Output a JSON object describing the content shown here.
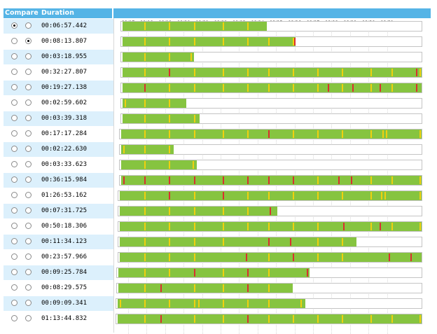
{
  "header": {
    "compare_label": "Compare",
    "duration_label": "Duration"
  },
  "colors": {
    "header_bg": "#55b4e6",
    "alt_row_bg": "#dcf0fc",
    "bar_green": "#86c440",
    "marker_yellow": "#f0d010",
    "marker_red": "#d83030"
  },
  "time_axis": {
    "ticks": [
      "08:17",
      "08:18",
      "08:19",
      "08:20",
      "08:21",
      "08:22",
      "08:23",
      "08:24",
      "08:25",
      "08:26",
      "08:27",
      "08:28",
      "08:29",
      "08:30",
      "08:31"
    ]
  },
  "rows": [
    {
      "duration": "00:06:57.442",
      "radio_a": true,
      "radio_b": false,
      "bar": [
        0.022,
        0.49
      ],
      "markers": [
        [
          "y",
          0.087
        ],
        [
          "y",
          0.168
        ],
        [
          "y",
          0.25
        ],
        [
          "y",
          0.344
        ],
        [
          "y",
          0.425
        ]
      ]
    },
    {
      "duration": "00:08:13.807",
      "radio_a": false,
      "radio_b": true,
      "bar": [
        0.022,
        0.585
      ],
      "markers": [
        [
          "y",
          0.087
        ],
        [
          "y",
          0.168
        ],
        [
          "y",
          0.25
        ],
        [
          "y",
          0.344
        ],
        [
          "y",
          0.425
        ],
        [
          "y",
          0.495
        ],
        [
          "y",
          0.575
        ],
        [
          "r",
          0.58
        ]
      ]
    },
    {
      "duration": "00:03:18.955",
      "radio_a": false,
      "radio_b": false,
      "bar": [
        0.022,
        0.25
      ],
      "markers": [
        [
          "y",
          0.087
        ],
        [
          "y",
          0.168
        ],
        [
          "y",
          0.24
        ]
      ]
    },
    {
      "duration": "00:32:27.807",
      "radio_a": false,
      "radio_b": false,
      "bar": [
        0.022,
        1
      ],
      "markers": [
        [
          "y",
          0.087
        ],
        [
          "r",
          0.168
        ],
        [
          "y",
          0.25
        ],
        [
          "y",
          0.344
        ],
        [
          "y",
          0.425
        ],
        [
          "y",
          0.495
        ],
        [
          "y",
          0.575
        ],
        [
          "y",
          0.655
        ],
        [
          "y",
          0.735
        ],
        [
          "y",
          0.83
        ],
        [
          "y",
          0.9
        ],
        [
          "r",
          0.98
        ],
        [
          "y",
          0.99
        ]
      ]
    },
    {
      "duration": "00:19:27.138",
      "radio_a": false,
      "radio_b": false,
      "bar": [
        0.022,
        1
      ],
      "markers": [
        [
          "y",
          0.087
        ],
        [
          "r",
          0.087
        ],
        [
          "y",
          0.168
        ],
        [
          "y",
          0.25
        ],
        [
          "y",
          0.344
        ],
        [
          "y",
          0.425
        ],
        [
          "y",
          0.495
        ],
        [
          "y",
          0.575
        ],
        [
          "y",
          0.655
        ],
        [
          "r",
          0.69
        ],
        [
          "y",
          0.735
        ],
        [
          "r",
          0.77
        ],
        [
          "y",
          0.83
        ],
        [
          "r",
          0.86
        ],
        [
          "y",
          0.9
        ],
        [
          "r",
          0.98
        ]
      ]
    },
    {
      "duration": "00:02:59.602",
      "radio_a": false,
      "radio_b": false,
      "bar": [
        0.022,
        0.225
      ],
      "markers": [
        [
          "y",
          0.022
        ],
        [
          "y",
          0.087
        ],
        [
          "y",
          0.168
        ]
      ]
    },
    {
      "duration": "00:03:39.318",
      "radio_a": false,
      "radio_b": false,
      "bar": [
        0.022,
        0.27
      ],
      "markers": [
        [
          "y",
          0.087
        ],
        [
          "y",
          0.168
        ],
        [
          "y",
          0.25
        ]
      ]
    },
    {
      "duration": "00:17:17.284",
      "radio_a": false,
      "radio_b": false,
      "bar": [
        0.018,
        1
      ],
      "markers": [
        [
          "y",
          0.087
        ],
        [
          "y",
          0.168
        ],
        [
          "y",
          0.25
        ],
        [
          "y",
          0.344
        ],
        [
          "y",
          0.425
        ],
        [
          "r",
          0.495
        ],
        [
          "y",
          0.575
        ],
        [
          "y",
          0.655
        ],
        [
          "y",
          0.735
        ],
        [
          "y",
          0.83
        ],
        [
          "y",
          0.87
        ],
        [
          "y",
          0.88
        ],
        [
          "y",
          0.99
        ]
      ]
    },
    {
      "duration": "00:02:22.630",
      "radio_a": false,
      "radio_b": false,
      "bar": [
        0.018,
        0.185
      ],
      "markers": [
        [
          "y",
          0.018
        ],
        [
          "y",
          0.087
        ],
        [
          "y",
          0.168
        ]
      ]
    },
    {
      "duration": "00:03:33.623",
      "radio_a": false,
      "radio_b": false,
      "bar": [
        0.018,
        0.26
      ],
      "markers": [
        [
          "y",
          0.087
        ],
        [
          "y",
          0.168
        ],
        [
          "y",
          0.245
        ]
      ]
    },
    {
      "duration": "00:36:15.984",
      "radio_a": false,
      "radio_b": false,
      "bar": [
        0.018,
        1
      ],
      "markers": [
        [
          "r",
          0.018
        ],
        [
          "r",
          0.087
        ],
        [
          "r",
          0.168
        ],
        [
          "r",
          0.25
        ],
        [
          "r",
          0.344
        ],
        [
          "r",
          0.425
        ],
        [
          "r",
          0.495
        ],
        [
          "r",
          0.575
        ],
        [
          "y",
          0.655
        ],
        [
          "r",
          0.725
        ],
        [
          "r",
          0.765
        ],
        [
          "y",
          0.83
        ],
        [
          "y",
          0.9
        ],
        [
          "y",
          0.99
        ]
      ]
    },
    {
      "duration": "01:26:53.162",
      "radio_a": false,
      "radio_b": false,
      "bar": [
        0.014,
        1
      ],
      "markers": [
        [
          "y",
          0.087
        ],
        [
          "r",
          0.168
        ],
        [
          "y",
          0.25
        ],
        [
          "r",
          0.344
        ],
        [
          "y",
          0.425
        ],
        [
          "y",
          0.495
        ],
        [
          "y",
          0.575
        ],
        [
          "y",
          0.655
        ],
        [
          "y",
          0.735
        ],
        [
          "y",
          0.83
        ],
        [
          "y",
          0.865
        ],
        [
          "y",
          0.875
        ],
        [
          "y",
          0.99
        ]
      ]
    },
    {
      "duration": "00:07:31.725",
      "radio_a": false,
      "radio_b": false,
      "bar": [
        0.014,
        0.525
      ],
      "markers": [
        [
          "y",
          0.087
        ],
        [
          "y",
          0.168
        ],
        [
          "y",
          0.25
        ],
        [
          "y",
          0.344
        ],
        [
          "y",
          0.425
        ],
        [
          "r",
          0.5
        ]
      ]
    },
    {
      "duration": "00:50:18.306",
      "radio_a": false,
      "radio_b": false,
      "bar": [
        0.014,
        1
      ],
      "markers": [
        [
          "y",
          0.087
        ],
        [
          "y",
          0.168
        ],
        [
          "y",
          0.25
        ],
        [
          "y",
          0.344
        ],
        [
          "y",
          0.425
        ],
        [
          "y",
          0.495
        ],
        [
          "y",
          0.575
        ],
        [
          "y",
          0.655
        ],
        [
          "r",
          0.74
        ],
        [
          "y",
          0.83
        ],
        [
          "r",
          0.86
        ],
        [
          "y",
          0.9
        ],
        [
          "y",
          0.99
        ]
      ]
    },
    {
      "duration": "00:11:34.123",
      "radio_a": false,
      "radio_b": false,
      "bar": [
        0.014,
        0.785
      ],
      "markers": [
        [
          "y",
          0.087
        ],
        [
          "y",
          0.168
        ],
        [
          "y",
          0.25
        ],
        [
          "y",
          0.344
        ],
        [
          "r",
          0.495
        ],
        [
          "r",
          0.565
        ],
        [
          "y",
          0.655
        ],
        [
          "y",
          0.735
        ]
      ]
    },
    {
      "duration": "00:23:57.966",
      "radio_a": false,
      "radio_b": false,
      "bar": [
        0.014,
        1
      ],
      "markers": [
        [
          "y",
          0.087
        ],
        [
          "y",
          0.168
        ],
        [
          "y",
          0.25
        ],
        [
          "r",
          0.42
        ],
        [
          "y",
          0.495
        ],
        [
          "r",
          0.575
        ],
        [
          "y",
          0.655
        ],
        [
          "y",
          0.735
        ],
        [
          "r",
          0.89
        ],
        [
          "r",
          0.96
        ]
      ]
    },
    {
      "duration": "00:09:25.784",
      "radio_a": false,
      "radio_b": false,
      "bar": [
        0.01,
        0.63
      ],
      "markers": [
        [
          "y",
          0.087
        ],
        [
          "y",
          0.168
        ],
        [
          "r",
          0.25
        ],
        [
          "y",
          0.344
        ],
        [
          "r",
          0.425
        ],
        [
          "y",
          0.495
        ],
        [
          "r",
          0.62
        ]
      ]
    },
    {
      "duration": "00:08:29.575",
      "radio_a": false,
      "radio_b": false,
      "bar": [
        0.01,
        0.575
      ],
      "markers": [
        [
          "y",
          0.087
        ],
        [
          "r",
          0.14
        ],
        [
          "y",
          0.25
        ],
        [
          "y",
          0.344
        ],
        [
          "r",
          0.425
        ],
        [
          "y",
          0.495
        ]
      ]
    },
    {
      "duration": "00:09:09.341",
      "radio_a": false,
      "radio_b": false,
      "bar": [
        0.006,
        0.615
      ],
      "markers": [
        [
          "y",
          0.006
        ],
        [
          "y",
          0.087
        ],
        [
          "y",
          0.168
        ],
        [
          "y",
          0.25
        ],
        [
          "y",
          0.265
        ],
        [
          "y",
          0.344
        ],
        [
          "y",
          0.425
        ],
        [
          "y",
          0.495
        ],
        [
          "y",
          0.6
        ]
      ]
    },
    {
      "duration": "01:13:44.832",
      "radio_a": false,
      "radio_b": false,
      "bar": [
        0.006,
        1
      ],
      "markers": [
        [
          "y",
          0.087
        ],
        [
          "r",
          0.14
        ],
        [
          "y",
          0.25
        ],
        [
          "y",
          0.344
        ],
        [
          "r",
          0.425
        ],
        [
          "y",
          0.495
        ],
        [
          "y",
          0.575
        ],
        [
          "y",
          0.655
        ],
        [
          "y",
          0.735
        ],
        [
          "y",
          0.83
        ],
        [
          "y",
          0.9
        ],
        [
          "y",
          0.99
        ]
      ]
    }
  ]
}
